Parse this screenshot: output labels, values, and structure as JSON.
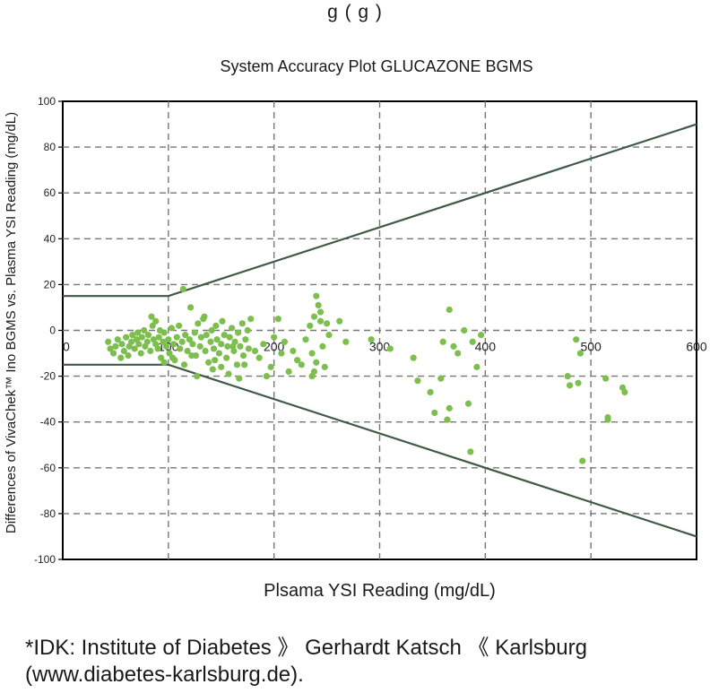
{
  "top_fragment": "g (   g     )",
  "footnote": {
    "line1": "*IDK: Institute of Diabetes 》 Gerhardt Katsch 《 Karlsburg",
    "line2": "(www.diabetes-karlsburg.de)."
  },
  "chart_data": {
    "type": "scatter",
    "title": "System Accuracy Plot GLUCAZONE BGMS",
    "xlabel": "Plsama YSI Reading (mg/dL)",
    "ylabel": "Differences of VivaChek™ Ino BGMS vs. Plasma YSI Reading (mg/dL)",
    "xlim": [
      0,
      600
    ],
    "ylim": [
      -100,
      100
    ],
    "x_ticks": [
      0,
      100,
      200,
      300,
      400,
      500,
      600
    ],
    "y_ticks": [
      100,
      80,
      60,
      40,
      20,
      0,
      -20,
      -40,
      -60,
      -80,
      -100
    ],
    "grid": true,
    "point_color": "#7dbf4e",
    "line_color": "#3f5a45",
    "bounds": {
      "upper": [
        [
          0,
          15
        ],
        [
          100,
          15
        ],
        [
          600,
          90
        ]
      ],
      "lower": [
        [
          0,
          -15
        ],
        [
          100,
          -15
        ],
        [
          600,
          -90
        ]
      ]
    },
    "points": [
      [
        43,
        -5
      ],
      [
        45,
        -8
      ],
      [
        48,
        -10
      ],
      [
        50,
        -7
      ],
      [
        52,
        -4
      ],
      [
        55,
        -12
      ],
      [
        56,
        -6
      ],
      [
        58,
        -9
      ],
      [
        60,
        -3
      ],
      [
        62,
        -11
      ],
      [
        63,
        -7
      ],
      [
        65,
        -5
      ],
      [
        66,
        -2
      ],
      [
        68,
        -8
      ],
      [
        70,
        -4
      ],
      [
        71,
        -1
      ],
      [
        72,
        -6
      ],
      [
        74,
        -10
      ],
      [
        75,
        -3
      ],
      [
        77,
        0
      ],
      [
        78,
        -7
      ],
      [
        80,
        -5
      ],
      [
        81,
        -2
      ],
      [
        83,
        -9
      ],
      [
        85,
        2
      ],
      [
        86,
        -4
      ],
      [
        88,
        -6
      ],
      [
        90,
        -8
      ],
      [
        91,
        -3
      ],
      [
        93,
        -12
      ],
      [
        95,
        -5
      ],
      [
        96,
        -1
      ],
      [
        98,
        -7
      ],
      [
        100,
        -4
      ],
      [
        101,
        -10
      ],
      [
        103,
        1
      ],
      [
        105,
        -6
      ],
      [
        106,
        -13
      ],
      [
        108,
        -3
      ],
      [
        110,
        2
      ],
      [
        111,
        -8
      ],
      [
        113,
        -5
      ],
      [
        114,
        18
      ],
      [
        116,
        -2
      ],
      [
        118,
        -9
      ],
      [
        120,
        -4
      ],
      [
        121,
        10
      ],
      [
        123,
        -6
      ],
      [
        125,
        -1
      ],
      [
        126,
        -11
      ],
      [
        128,
        3
      ],
      [
        130,
        -7
      ],
      [
        131,
        -3
      ],
      [
        133,
        5
      ],
      [
        135,
        -9
      ],
      [
        136,
        -2
      ],
      [
        138,
        -14
      ],
      [
        140,
        -5
      ],
      [
        141,
        0
      ],
      [
        143,
        -8
      ],
      [
        145,
        2
      ],
      [
        146,
        -4
      ],
      [
        148,
        -10
      ],
      [
        150,
        -6
      ],
      [
        151,
        4
      ],
      [
        153,
        -2
      ],
      [
        155,
        -12
      ],
      [
        156,
        -7
      ],
      [
        158,
        -3
      ],
      [
        160,
        1
      ],
      [
        162,
        -9
      ],
      [
        163,
        -5
      ],
      [
        165,
        -15
      ],
      [
        166,
        -1
      ],
      [
        168,
        -7
      ],
      [
        170,
        3
      ],
      [
        171,
        -11
      ],
      [
        173,
        -4
      ],
      [
        175,
        0
      ],
      [
        176,
        -8
      ],
      [
        84,
        6
      ],
      [
        88,
        4
      ],
      [
        92,
        0
      ],
      [
        96,
        -14
      ],
      [
        104,
        -12
      ],
      [
        115,
        -15
      ],
      [
        122,
        -11
      ],
      [
        127,
        -20
      ],
      [
        134,
        6
      ],
      [
        142,
        -17
      ],
      [
        144,
        -13
      ],
      [
        150,
        -16
      ],
      [
        157,
        -19
      ],
      [
        161,
        -7
      ],
      [
        167,
        -21
      ],
      [
        172,
        -15
      ],
      [
        178,
        5
      ],
      [
        182,
        -9
      ],
      [
        186,
        -12
      ],
      [
        190,
        -6
      ],
      [
        193,
        -20
      ],
      [
        197,
        -16
      ],
      [
        200,
        -3
      ],
      [
        204,
        5
      ],
      [
        207,
        -10
      ],
      [
        210,
        -5
      ],
      [
        214,
        -18
      ],
      [
        218,
        -9
      ],
      [
        222,
        -13
      ],
      [
        226,
        -15
      ],
      [
        230,
        -4
      ],
      [
        234,
        2
      ],
      [
        236,
        -10
      ],
      [
        238,
        6
      ],
      [
        240,
        15
      ],
      [
        242,
        11
      ],
      [
        244,
        4
      ],
      [
        246,
        -7
      ],
      [
        248,
        -16
      ],
      [
        250,
        3
      ],
      [
        236,
        -20
      ],
      [
        238,
        -18
      ],
      [
        240,
        -14
      ],
      [
        244,
        8
      ],
      [
        252,
        -2
      ],
      [
        262,
        4
      ],
      [
        268,
        -5
      ],
      [
        292,
        -4
      ],
      [
        310,
        -8
      ],
      [
        332,
        -12
      ],
      [
        336,
        -22
      ],
      [
        348,
        -27
      ],
      [
        352,
        -36
      ],
      [
        358,
        -21
      ],
      [
        360,
        -5
      ],
      [
        364,
        -39
      ],
      [
        366,
        -34
      ],
      [
        366,
        9
      ],
      [
        370,
        -7
      ],
      [
        374,
        -10
      ],
      [
        380,
        0
      ],
      [
        384,
        -32
      ],
      [
        386,
        -53
      ],
      [
        388,
        -5
      ],
      [
        392,
        -16
      ],
      [
        396,
        -2
      ],
      [
        478,
        -20
      ],
      [
        480,
        -24
      ],
      [
        486,
        -4
      ],
      [
        490,
        -10
      ],
      [
        488,
        -23
      ],
      [
        492,
        -57
      ],
      [
        514,
        -21
      ],
      [
        516,
        -38
      ],
      [
        516,
        -39
      ],
      [
        530,
        -25
      ],
      [
        532,
        -27
      ]
    ]
  }
}
